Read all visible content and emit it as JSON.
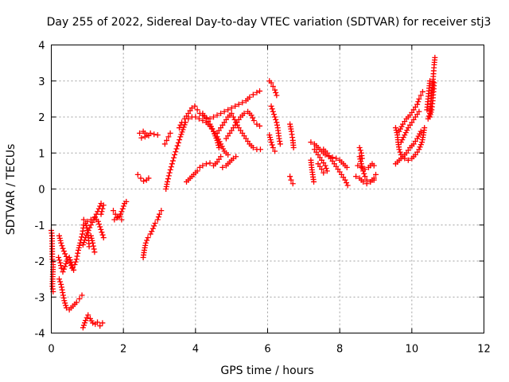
{
  "chart_data": {
    "type": "scatter",
    "title": "Day 255 of 2022, Sidereal Day-to-day VTEC variation (SDTVAR) for receiver stj3",
    "xlabel": "GPS time / hours",
    "ylabel": "SDTVAR / TECUs",
    "xlim": [
      0,
      12
    ],
    "ylim": [
      -4,
      4
    ],
    "xticks": [
      "0",
      "2",
      "4",
      "6",
      "8",
      "10",
      "12"
    ],
    "yticks": [
      "-4",
      "-3",
      "-2",
      "-1",
      "0",
      "1",
      "2",
      "3",
      "4"
    ],
    "grid": true,
    "legend": "none",
    "marker": "plus",
    "color": "#ff0000",
    "segments": [
      [
        [
          0.0,
          -1.15
        ],
        [
          0.02,
          -1.3
        ],
        [
          0.03,
          -1.95
        ],
        [
          0.05,
          -2.1
        ],
        [
          0.03,
          -2.7
        ],
        [
          0.05,
          -2.85
        ]
      ],
      [
        [
          0.22,
          -1.3
        ],
        [
          0.27,
          -1.5
        ],
        [
          0.32,
          -1.65
        ],
        [
          0.38,
          -1.8
        ],
        [
          0.45,
          -1.95
        ],
        [
          0.52,
          -2.05
        ],
        [
          0.58,
          -2.2
        ],
        [
          0.65,
          -2.1
        ],
        [
          0.7,
          -1.95
        ],
        [
          0.75,
          -1.7
        ],
        [
          0.8,
          -1.5
        ],
        [
          0.86,
          -1.25
        ],
        [
          0.9,
          -1.0
        ]
      ],
      [
        [
          0.2,
          -1.9
        ],
        [
          0.25,
          -2.05
        ],
        [
          0.28,
          -2.2
        ],
        [
          0.32,
          -2.3
        ],
        [
          0.38,
          -2.15
        ],
        [
          0.43,
          -2.0
        ],
        [
          0.5,
          -1.9
        ],
        [
          0.57,
          -2.1
        ],
        [
          0.62,
          -2.25
        ]
      ],
      [
        [
          0.22,
          -2.5
        ],
        [
          0.27,
          -2.65
        ],
        [
          0.3,
          -2.8
        ],
        [
          0.33,
          -2.95
        ],
        [
          0.36,
          -3.1
        ],
        [
          0.42,
          -3.3
        ],
        [
          0.5,
          -3.35
        ],
        [
          0.6,
          -3.25
        ],
        [
          0.7,
          -3.15
        ],
        [
          0.78,
          -3.05
        ],
        [
          0.85,
          -2.95
        ]
      ],
      [
        [
          0.9,
          -0.85
        ],
        [
          0.95,
          -0.95
        ],
        [
          1.0,
          -1.15
        ],
        [
          1.03,
          -1.35
        ],
        [
          1.05,
          -1.6
        ]
      ],
      [
        [
          0.88,
          -1.55
        ],
        [
          0.95,
          -1.35
        ],
        [
          1.03,
          -1.15
        ],
        [
          1.1,
          -1.0
        ],
        [
          1.18,
          -0.85
        ],
        [
          1.25,
          -0.7
        ],
        [
          1.32,
          -0.55
        ],
        [
          1.38,
          -0.4
        ]
      ],
      [
        [
          1.0,
          -0.9
        ],
        [
          1.1,
          -0.85
        ],
        [
          1.2,
          -0.8
        ],
        [
          1.3,
          -0.9
        ],
        [
          1.35,
          -1.05
        ],
        [
          1.4,
          -1.2
        ],
        [
          1.45,
          -1.35
        ]
      ],
      [
        [
          1.1,
          -1.3
        ],
        [
          1.15,
          -1.5
        ],
        [
          1.2,
          -1.75
        ]
      ],
      [
        [
          1.38,
          -0.7
        ],
        [
          1.42,
          -0.55
        ],
        [
          1.45,
          -0.45
        ]
      ],
      [
        [
          0.88,
          -3.85
        ],
        [
          0.95,
          -3.65
        ],
        [
          1.02,
          -3.5
        ],
        [
          1.08,
          -3.6
        ],
        [
          1.15,
          -3.72
        ],
        [
          1.22,
          -3.75
        ],
        [
          1.28,
          -3.7
        ],
        [
          1.35,
          -3.8
        ],
        [
          1.42,
          -3.72
        ]
      ],
      [
        [
          1.72,
          -0.6
        ],
        [
          1.78,
          -0.7
        ],
        [
          1.85,
          -0.78
        ],
        [
          1.92,
          -0.7
        ],
        [
          1.98,
          -0.55
        ],
        [
          2.03,
          -0.4
        ],
        [
          2.08,
          -0.35
        ]
      ],
      [
        [
          1.75,
          -0.85
        ],
        [
          1.82,
          -0.8
        ],
        [
          1.9,
          -0.75
        ],
        [
          1.95,
          -0.85
        ]
      ],
      [
        [
          2.4,
          0.4
        ],
        [
          2.48,
          0.3
        ],
        [
          2.56,
          0.22
        ],
        [
          2.64,
          0.25
        ],
        [
          2.7,
          0.3
        ]
      ],
      [
        [
          2.45,
          1.55
        ],
        [
          2.55,
          1.6
        ],
        [
          2.65,
          1.5
        ],
        [
          2.75,
          1.55
        ],
        [
          2.85,
          1.52
        ],
        [
          2.95,
          1.5
        ]
      ],
      [
        [
          2.5,
          1.42
        ],
        [
          2.6,
          1.45
        ],
        [
          2.7,
          1.48
        ]
      ],
      [
        [
          2.55,
          -1.9
        ],
        [
          2.58,
          -1.7
        ],
        [
          2.62,
          -1.5
        ],
        [
          2.68,
          -1.35
        ],
        [
          2.75,
          -1.25
        ],
        [
          2.82,
          -1.1
        ],
        [
          2.88,
          -0.95
        ],
        [
          2.95,
          -0.85
        ],
        [
          3.0,
          -0.7
        ],
        [
          3.05,
          -0.6
        ]
      ],
      [
        [
          3.15,
          1.25
        ],
        [
          3.2,
          1.35
        ],
        [
          3.25,
          1.45
        ],
        [
          3.3,
          1.55
        ]
      ],
      [
        [
          3.18,
          0.0
        ],
        [
          3.22,
          0.2
        ],
        [
          3.28,
          0.45
        ],
        [
          3.35,
          0.7
        ],
        [
          3.42,
          0.95
        ],
        [
          3.5,
          1.2
        ],
        [
          3.58,
          1.45
        ],
        [
          3.65,
          1.65
        ],
        [
          3.72,
          1.85
        ],
        [
          3.8,
          1.95
        ],
        [
          3.9,
          2.0
        ],
        [
          4.0,
          2.0
        ],
        [
          4.1,
          1.95
        ],
        [
          4.2,
          1.9
        ],
        [
          4.3,
          1.85
        ],
        [
          4.4,
          1.75
        ],
        [
          4.5,
          1.6
        ],
        [
          4.6,
          1.45
        ],
        [
          4.7,
          1.25
        ],
        [
          4.8,
          1.05
        ],
        [
          4.9,
          0.95
        ]
      ],
      [
        [
          3.55,
          1.7
        ],
        [
          3.62,
          1.85
        ],
        [
          3.7,
          1.95
        ],
        [
          3.8,
          2.1
        ],
        [
          3.9,
          2.25
        ],
        [
          3.98,
          2.3
        ],
        [
          4.05,
          2.2
        ],
        [
          4.12,
          2.1
        ],
        [
          4.2,
          2.05
        ],
        [
          4.3,
          1.98
        ],
        [
          4.4,
          1.95
        ],
        [
          4.5,
          2.0
        ],
        [
          4.6,
          2.05
        ],
        [
          4.7,
          2.1
        ],
        [
          4.8,
          2.15
        ],
        [
          4.9,
          2.2
        ],
        [
          5.0,
          2.25
        ],
        [
          5.1,
          2.3
        ],
        [
          5.2,
          2.35
        ],
        [
          5.3,
          2.4
        ],
        [
          5.4,
          2.45
        ],
        [
          5.5,
          2.55
        ],
        [
          5.6,
          2.62
        ],
        [
          5.7,
          2.68
        ],
        [
          5.78,
          2.72
        ]
      ],
      [
        [
          3.75,
          0.2
        ],
        [
          3.85,
          0.3
        ],
        [
          3.95,
          0.4
        ],
        [
          4.05,
          0.5
        ],
        [
          4.12,
          0.6
        ],
        [
          4.2,
          0.65
        ],
        [
          4.3,
          0.7
        ],
        [
          4.4,
          0.72
        ],
        [
          4.5,
          0.65
        ],
        [
          4.6,
          0.75
        ],
        [
          4.7,
          0.9
        ]
      ],
      [
        [
          4.2,
          2.1
        ],
        [
          4.3,
          1.95
        ],
        [
          4.4,
          1.8
        ],
        [
          4.5,
          1.6
        ],
        [
          4.6,
          1.35
        ],
        [
          4.65,
          1.15
        ]
      ],
      [
        [
          4.6,
          1.55
        ],
        [
          4.7,
          1.7
        ],
        [
          4.8,
          1.85
        ],
        [
          4.9,
          2.0
        ],
        [
          5.0,
          2.1
        ],
        [
          5.05,
          2.0
        ],
        [
          5.12,
          1.85
        ],
        [
          5.2,
          1.7
        ],
        [
          5.3,
          1.55
        ],
        [
          5.4,
          1.4
        ],
        [
          5.5,
          1.25
        ],
        [
          5.6,
          1.15
        ],
        [
          5.7,
          1.1
        ],
        [
          5.8,
          1.1
        ]
      ],
      [
        [
          4.85,
          1.4
        ],
        [
          4.95,
          1.55
        ],
        [
          5.05,
          1.7
        ],
        [
          5.15,
          1.85
        ],
        [
          5.25,
          2.0
        ],
        [
          5.35,
          2.1
        ],
        [
          5.45,
          2.15
        ],
        [
          5.55,
          2.05
        ],
        [
          5.62,
          1.9
        ],
        [
          5.7,
          1.8
        ],
        [
          5.78,
          1.75
        ]
      ],
      [
        [
          4.75,
          0.6
        ],
        [
          4.85,
          0.65
        ],
        [
          4.95,
          0.75
        ],
        [
          5.05,
          0.85
        ],
        [
          5.12,
          0.9
        ]
      ],
      [
        [
          6.05,
          3.0
        ],
        [
          6.1,
          2.95
        ],
        [
          6.15,
          2.85
        ],
        [
          6.2,
          2.75
        ],
        [
          6.25,
          2.6
        ]
      ],
      [
        [
          6.1,
          2.3
        ],
        [
          6.15,
          2.15
        ],
        [
          6.2,
          2.0
        ],
        [
          6.25,
          1.85
        ],
        [
          6.28,
          1.7
        ],
        [
          6.3,
          1.55
        ],
        [
          6.32,
          1.4
        ],
        [
          6.35,
          1.25
        ]
      ],
      [
        [
          6.05,
          1.5
        ],
        [
          6.1,
          1.3
        ],
        [
          6.15,
          1.15
        ],
        [
          6.2,
          1.05
        ]
      ],
      [
        [
          6.62,
          1.8
        ],
        [
          6.66,
          1.6
        ],
        [
          6.7,
          1.35
        ],
        [
          6.72,
          1.15
        ]
      ],
      [
        [
          6.62,
          0.35
        ],
        [
          6.65,
          0.25
        ],
        [
          6.7,
          0.15
        ]
      ],
      [
        [
          7.2,
          0.8
        ],
        [
          7.22,
          0.6
        ],
        [
          7.25,
          0.4
        ],
        [
          7.28,
          0.2
        ]
      ],
      [
        [
          7.2,
          1.3
        ],
        [
          7.3,
          1.25
        ],
        [
          7.4,
          1.15
        ],
        [
          7.5,
          1.05
        ],
        [
          7.6,
          0.95
        ],
        [
          7.7,
          0.9
        ],
        [
          7.8,
          0.88
        ],
        [
          7.9,
          0.85
        ],
        [
          8.0,
          0.8
        ],
        [
          8.1,
          0.7
        ],
        [
          8.2,
          0.6
        ]
      ],
      [
        [
          7.3,
          1.1
        ],
        [
          7.4,
          0.95
        ],
        [
          7.5,
          0.8
        ],
        [
          7.6,
          0.65
        ],
        [
          7.65,
          0.5
        ]
      ],
      [
        [
          7.55,
          1.1
        ],
        [
          7.65,
          1.0
        ],
        [
          7.75,
          0.85
        ],
        [
          7.85,
          0.7
        ],
        [
          7.95,
          0.55
        ],
        [
          8.05,
          0.4
        ],
        [
          8.15,
          0.25
        ],
        [
          8.22,
          0.1
        ]
      ],
      [
        [
          7.4,
          0.7
        ],
        [
          7.5,
          0.55
        ],
        [
          7.55,
          0.45
        ]
      ],
      [
        [
          8.55,
          0.9
        ],
        [
          8.6,
          0.7
        ],
        [
          8.65,
          0.5
        ],
        [
          8.7,
          0.35
        ],
        [
          8.75,
          0.25
        ],
        [
          8.85,
          0.2
        ],
        [
          8.95,
          0.25
        ]
      ],
      [
        [
          8.45,
          0.35
        ],
        [
          8.55,
          0.3
        ],
        [
          8.65,
          0.2
        ],
        [
          8.75,
          0.15
        ],
        [
          8.85,
          0.2
        ],
        [
          8.95,
          0.3
        ],
        [
          9.0,
          0.4
        ]
      ],
      [
        [
          8.5,
          0.65
        ],
        [
          8.6,
          0.6
        ],
        [
          8.7,
          0.55
        ],
        [
          8.8,
          0.6
        ],
        [
          8.9,
          0.7
        ],
        [
          8.95,
          0.65
        ]
      ],
      [
        [
          8.55,
          1.15
        ],
        [
          8.6,
          1.0
        ],
        [
          8.62,
          0.85
        ]
      ],
      [
        [
          9.55,
          1.7
        ],
        [
          9.6,
          1.5
        ],
        [
          9.62,
          1.3
        ],
        [
          9.65,
          1.1
        ],
        [
          9.7,
          0.95
        ],
        [
          9.8,
          0.85
        ],
        [
          9.9,
          0.8
        ],
        [
          10.0,
          0.85
        ],
        [
          10.1,
          0.95
        ],
        [
          10.2,
          1.1
        ],
        [
          10.28,
          1.3
        ],
        [
          10.32,
          1.5
        ],
        [
          10.35,
          1.7
        ]
      ],
      [
        [
          9.55,
          0.7
        ],
        [
          9.65,
          0.8
        ],
        [
          9.75,
          0.9
        ],
        [
          9.85,
          1.0
        ],
        [
          9.95,
          1.15
        ],
        [
          10.05,
          1.25
        ],
        [
          10.15,
          1.4
        ],
        [
          10.25,
          1.6
        ]
      ],
      [
        [
          9.65,
          1.6
        ],
        [
          9.75,
          1.8
        ],
        [
          9.85,
          1.95
        ],
        [
          9.95,
          2.05
        ],
        [
          10.05,
          2.2
        ],
        [
          10.15,
          2.35
        ],
        [
          10.2,
          2.5
        ],
        [
          10.25,
          2.6
        ],
        [
          10.3,
          2.7
        ]
      ],
      [
        [
          9.7,
          1.3
        ],
        [
          9.8,
          1.5
        ],
        [
          9.9,
          1.7
        ],
        [
          10.0,
          1.85
        ],
        [
          10.1,
          2.0
        ],
        [
          10.2,
          2.15
        ]
      ],
      [
        [
          10.45,
          1.95
        ],
        [
          10.5,
          2.1
        ],
        [
          10.52,
          2.3
        ],
        [
          10.55,
          2.6
        ],
        [
          10.58,
          2.9
        ],
        [
          10.6,
          3.2
        ],
        [
          10.62,
          3.45
        ],
        [
          10.64,
          3.65
        ]
      ],
      [
        [
          10.5,
          2.0
        ],
        [
          10.55,
          2.2
        ],
        [
          10.58,
          2.45
        ],
        [
          10.6,
          2.7
        ],
        [
          10.62,
          2.95
        ]
      ],
      [
        [
          10.42,
          2.2
        ],
        [
          10.45,
          2.5
        ],
        [
          10.48,
          2.8
        ],
        [
          10.5,
          3.0
        ]
      ]
    ]
  }
}
